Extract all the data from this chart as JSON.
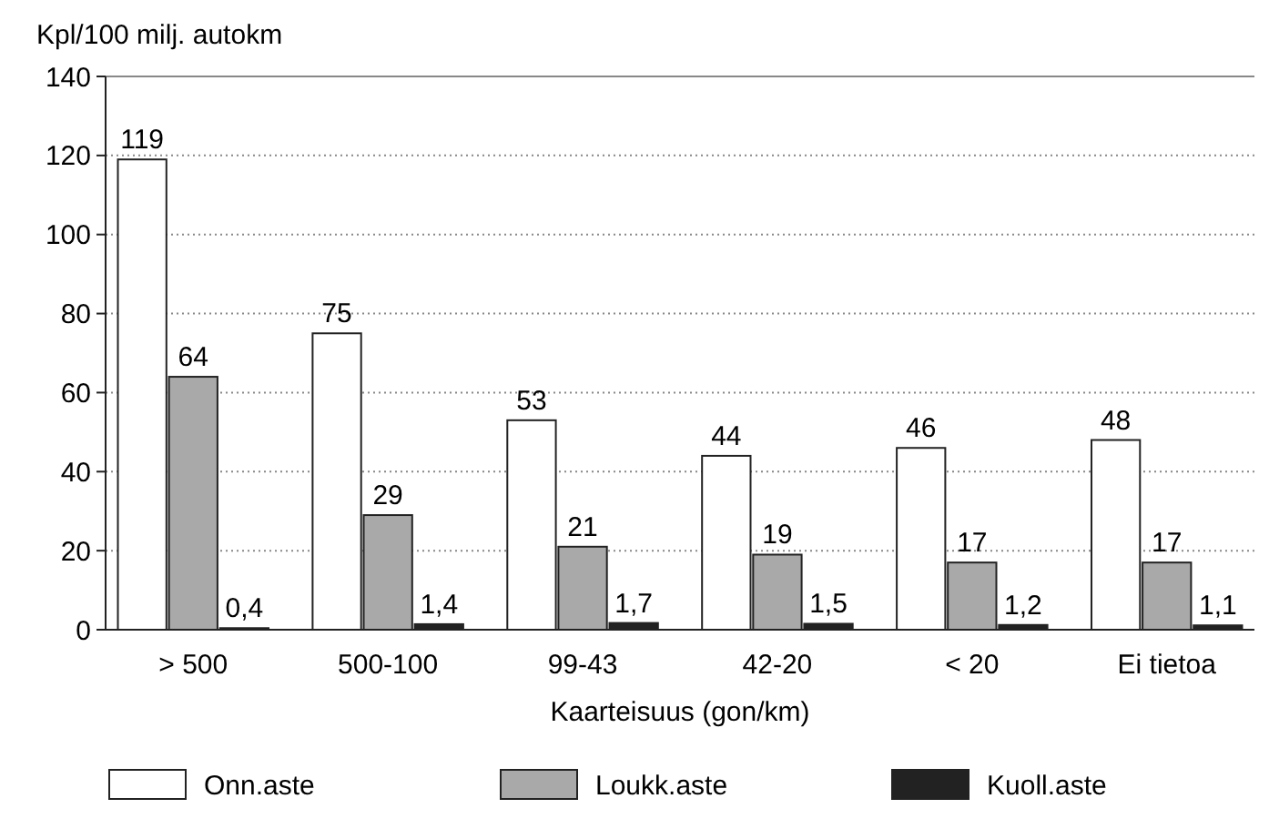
{
  "chart_data": {
    "type": "bar",
    "ylabel": "Kpl/100 milj. autokm",
    "xlabel": "Kaarteisuus (gon/km)",
    "categories": [
      "> 500",
      "500-100",
      "99-43",
      "42-20",
      "< 20",
      "Ei tietoa"
    ],
    "series": [
      {
        "name": "Onn.aste",
        "color": "#ffffff",
        "values": [
          119,
          75,
          53,
          44,
          46,
          48
        ],
        "value_labels": [
          "119",
          "75",
          "53",
          "44",
          "46",
          "48"
        ]
      },
      {
        "name": "Loukk.aste",
        "color": "#a9a9a9",
        "values": [
          64,
          29,
          21,
          19,
          17,
          17
        ],
        "value_labels": [
          "64",
          "29",
          "21",
          "19",
          "17",
          "17"
        ]
      },
      {
        "name": "Kuoll.aste",
        "color": "#222222",
        "values": [
          0.4,
          1.4,
          1.7,
          1.5,
          1.2,
          1.1
        ],
        "value_labels": [
          "0,4",
          "1,4",
          "1,7",
          "1,5",
          "1,2",
          "1,1"
        ]
      }
    ],
    "ylim": [
      0,
      140
    ],
    "yticks": [
      0,
      20,
      40,
      60,
      80,
      100,
      120,
      140
    ],
    "grid": "y",
    "legend": "bottom"
  }
}
